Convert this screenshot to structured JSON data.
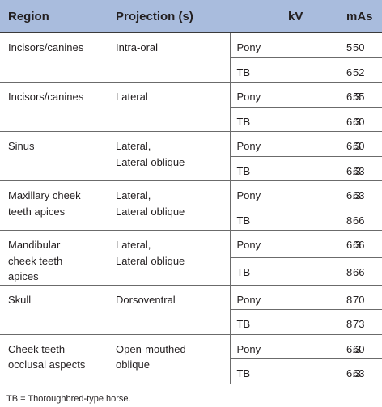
{
  "headers": {
    "region": "Region",
    "projection": "Projection (s)",
    "type": "",
    "kv": "kV",
    "mas": "mAs"
  },
  "groups": [
    {
      "region": "Incisors/canines",
      "projection": "Intra-oral",
      "rows": [
        {
          "type": "Pony",
          "kv": "50",
          "mas": "5"
        },
        {
          "type": "TB",
          "kv": "52",
          "mas": "6"
        }
      ]
    },
    {
      "region": "Incisors/canines",
      "projection": "Lateral",
      "rows": [
        {
          "type": "Pony",
          "kv": "55",
          "mas": "6.3"
        },
        {
          "type": "TB",
          "kv": "60",
          "mas": "6.3"
        }
      ]
    },
    {
      "region": "Sinus",
      "projection": "Lateral,\nLateral oblique",
      "rows": [
        {
          "type": "Pony",
          "kv": "60",
          "mas": "6.3"
        },
        {
          "type": "TB",
          "kv": "63",
          "mas": "6.3"
        }
      ]
    },
    {
      "region": "Maxillary cheek\nteeth apices",
      "projection": "Lateral,\nLateral oblique",
      "rows": [
        {
          "type": "Pony",
          "kv": "63",
          "mas": "6.3"
        },
        {
          "type": "TB",
          "kv": "66",
          "mas": "8"
        }
      ]
    },
    {
      "region": "Mandibular\ncheek teeth\napices",
      "projection": "Lateral,\nLateral oblique",
      "rows": [
        {
          "type": "Pony",
          "kv": "66",
          "mas": "6.3"
        },
        {
          "type": "TB",
          "kv": "66",
          "mas": "8"
        }
      ]
    },
    {
      "region": "Skull",
      "projection": "Dorsoventral",
      "rows": [
        {
          "type": "Pony",
          "kv": "70",
          "mas": "8"
        },
        {
          "type": "TB",
          "kv": "73",
          "mas": "8"
        }
      ]
    },
    {
      "region": "Cheek teeth\nocclusal aspects",
      "projection": "Open-mouthed\noblique",
      "rows": [
        {
          "type": "Pony",
          "kv": "60",
          "mas": "6.3"
        },
        {
          "type": "TB",
          "kv": "63",
          "mas": "6.3"
        }
      ]
    }
  ],
  "footnote": "TB = Thoroughbred-type horse."
}
